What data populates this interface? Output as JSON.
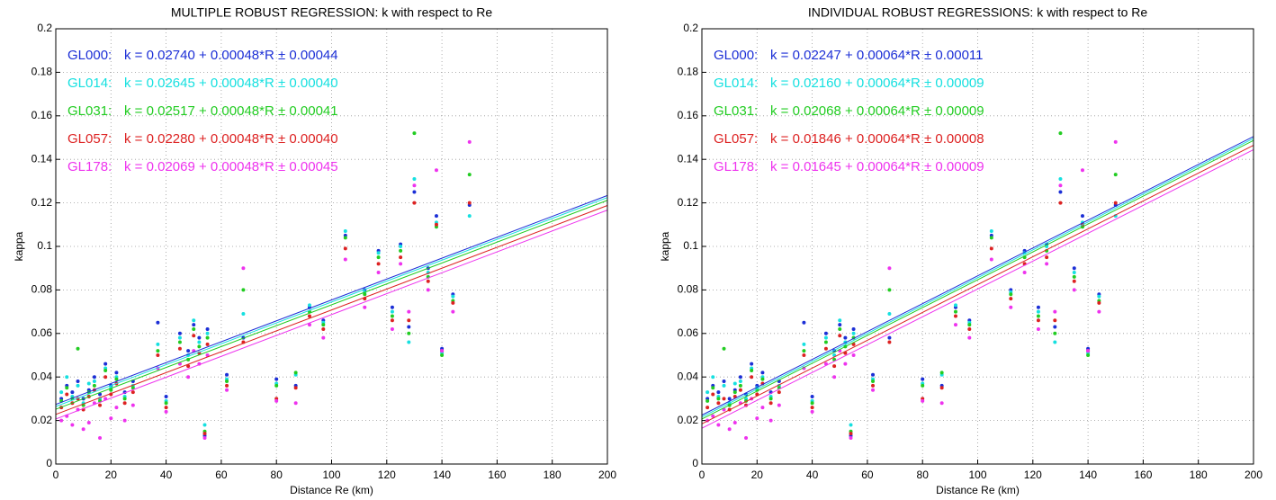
{
  "chart_data": [
    {
      "type": "scatter",
      "title": "MULTIPLE ROBUST REGRESSION: k with respect to Re",
      "xlabel": "Distance Re (km)",
      "ylabel": "kappa",
      "xlim": [
        0,
        200
      ],
      "ylim": [
        0,
        0.2
      ],
      "xticks": [
        0,
        20,
        40,
        60,
        80,
        100,
        120,
        140,
        160,
        180,
        200
      ],
      "yticks": [
        0,
        0.02,
        0.04,
        0.06,
        0.08,
        0.1,
        0.12,
        0.14,
        0.16,
        0.18,
        0.2
      ],
      "grid": true,
      "series": [
        {
          "name": "GL000:",
          "color": "#1c2fd6",
          "equation": "k = 0.02740 + 0.00048*R ± 0.00044",
          "intercept": 0.0274,
          "slope": 0.00048,
          "error": 0.00044,
          "x": [
            2,
            4,
            6,
            8,
            10,
            12,
            14,
            16,
            18,
            20,
            22,
            25,
            28,
            37,
            40,
            45,
            48,
            50,
            52,
            54,
            55,
            62,
            68,
            80,
            87,
            92,
            97,
            105,
            112,
            117,
            122,
            125,
            128,
            130,
            135,
            138,
            140,
            144,
            150
          ],
          "values": [
            0.03,
            0.036,
            0.033,
            0.038,
            0.03,
            0.034,
            0.04,
            0.032,
            0.046,
            0.036,
            0.042,
            0.033,
            0.038,
            0.065,
            0.031,
            0.06,
            0.052,
            0.064,
            0.058,
            0.013,
            0.062,
            0.041,
            0.058,
            0.039,
            0.036,
            0.072,
            0.066,
            0.105,
            0.08,
            0.098,
            0.072,
            0.101,
            0.063,
            0.125,
            0.09,
            0.114,
            0.053,
            0.078,
            0.119
          ]
        },
        {
          "name": "GL014:",
          "color": "#16e0e0",
          "equation": "k = 0.02645 + 0.00048*R ± 0.00040",
          "intercept": 0.02645,
          "slope": 0.00048,
          "error": 0.0004,
          "x": [
            2,
            4,
            6,
            8,
            10,
            12,
            14,
            16,
            18,
            20,
            22,
            25,
            28,
            37,
            40,
            45,
            48,
            50,
            52,
            54,
            55,
            62,
            68,
            80,
            87,
            92,
            97,
            105,
            112,
            117,
            122,
            125,
            128,
            130,
            135,
            138,
            140,
            144,
            150
          ],
          "values": [
            0.033,
            0.04,
            0.031,
            0.036,
            0.028,
            0.037,
            0.038,
            0.03,
            0.044,
            0.035,
            0.04,
            0.031,
            0.036,
            0.055,
            0.029,
            0.058,
            0.05,
            0.066,
            0.056,
            0.018,
            0.06,
            0.039,
            0.069,
            0.037,
            0.041,
            0.073,
            0.065,
            0.107,
            0.079,
            0.097,
            0.07,
            0.1,
            0.056,
            0.131,
            0.088,
            0.111,
            0.051,
            0.077,
            0.114
          ]
        },
        {
          "name": "GL031:",
          "color": "#22cc22",
          "equation": "k = 0.02517 + 0.00048*R ± 0.00041",
          "intercept": 0.02517,
          "slope": 0.00048,
          "error": 0.00041,
          "x": [
            2,
            4,
            6,
            8,
            10,
            12,
            14,
            16,
            18,
            20,
            22,
            25,
            28,
            37,
            40,
            45,
            48,
            50,
            52,
            54,
            55,
            62,
            68,
            80,
            87,
            92,
            97,
            105,
            112,
            117,
            122,
            125,
            128,
            130,
            135,
            138,
            140,
            144,
            150
          ],
          "values": [
            0.029,
            0.035,
            0.03,
            0.053,
            0.027,
            0.033,
            0.036,
            0.029,
            0.043,
            0.034,
            0.039,
            0.03,
            0.035,
            0.052,
            0.028,
            0.056,
            0.048,
            0.062,
            0.054,
            0.015,
            0.058,
            0.038,
            0.08,
            0.036,
            0.042,
            0.07,
            0.064,
            0.104,
            0.078,
            0.095,
            0.068,
            0.098,
            0.06,
            0.152,
            0.086,
            0.109,
            0.05,
            0.075,
            0.133
          ]
        },
        {
          "name": "GL057:",
          "color": "#dd2222",
          "equation": "k = 0.02280 + 0.00048*R ± 0.00040",
          "intercept": 0.0228,
          "slope": 0.00048,
          "error": 0.0004,
          "x": [
            2,
            4,
            6,
            8,
            10,
            12,
            14,
            16,
            18,
            20,
            22,
            25,
            28,
            37,
            40,
            45,
            48,
            50,
            52,
            54,
            55,
            62,
            68,
            80,
            87,
            92,
            97,
            105,
            112,
            117,
            122,
            125,
            128,
            130,
            135,
            138,
            140,
            144,
            150
          ],
          "values": [
            0.026,
            0.032,
            0.028,
            0.03,
            0.025,
            0.031,
            0.034,
            0.027,
            0.04,
            0.032,
            0.037,
            0.028,
            0.033,
            0.05,
            0.026,
            0.053,
            0.045,
            0.059,
            0.051,
            0.014,
            0.055,
            0.036,
            0.056,
            0.03,
            0.035,
            0.068,
            0.062,
            0.099,
            0.076,
            0.092,
            0.066,
            0.095,
            0.066,
            0.12,
            0.084,
            0.11,
            0.052,
            0.074,
            0.12
          ]
        },
        {
          "name": "GL178:",
          "color": "#ee33ee",
          "equation": "k = 0.02069 + 0.00048*R ± 0.00045",
          "intercept": 0.02069,
          "slope": 0.00048,
          "error": 0.00045,
          "x": [
            2,
            4,
            6,
            8,
            10,
            12,
            14,
            16,
            18,
            20,
            22,
            25,
            28,
            37,
            40,
            45,
            48,
            50,
            52,
            54,
            55,
            62,
            68,
            80,
            87,
            92,
            97,
            105,
            112,
            117,
            122,
            125,
            128,
            130,
            135,
            138,
            140,
            144,
            150
          ],
          "values": [
            0.02,
            0.022,
            0.018,
            0.025,
            0.016,
            0.019,
            0.028,
            0.012,
            0.03,
            0.021,
            0.026,
            0.02,
            0.027,
            0.044,
            0.024,
            0.046,
            0.04,
            0.052,
            0.046,
            0.012,
            0.05,
            0.034,
            0.09,
            0.029,
            0.028,
            0.064,
            0.058,
            0.094,
            0.072,
            0.088,
            0.062,
            0.092,
            0.07,
            0.128,
            0.08,
            0.135,
            0.052,
            0.07,
            0.148
          ]
        }
      ]
    },
    {
      "type": "scatter",
      "title": "INDIVIDUAL ROBUST REGRESSIONS: k with respect to Re",
      "xlabel": "Distance Re (km)",
      "ylabel": "kappa",
      "xlim": [
        0,
        200
      ],
      "ylim": [
        0,
        0.2
      ],
      "xticks": [
        0,
        20,
        40,
        60,
        80,
        100,
        120,
        140,
        160,
        180,
        200
      ],
      "yticks": [
        0,
        0.02,
        0.04,
        0.06,
        0.08,
        0.1,
        0.12,
        0.14,
        0.16,
        0.18,
        0.2
      ],
      "grid": true,
      "series": [
        {
          "name": "GL000:",
          "color": "#1c2fd6",
          "equation": "k = 0.02247 + 0.00064*R ± 0.00011",
          "intercept": 0.02247,
          "slope": 0.00064,
          "error": 0.00011,
          "x": [
            2,
            4,
            6,
            8,
            10,
            12,
            14,
            16,
            18,
            20,
            22,
            25,
            28,
            37,
            40,
            45,
            48,
            50,
            52,
            54,
            55,
            62,
            68,
            80,
            87,
            92,
            97,
            105,
            112,
            117,
            122,
            125,
            128,
            130,
            135,
            138,
            140,
            144,
            150
          ],
          "values": [
            0.03,
            0.036,
            0.033,
            0.038,
            0.03,
            0.034,
            0.04,
            0.032,
            0.046,
            0.036,
            0.042,
            0.033,
            0.038,
            0.065,
            0.031,
            0.06,
            0.052,
            0.064,
            0.058,
            0.013,
            0.062,
            0.041,
            0.058,
            0.039,
            0.036,
            0.072,
            0.066,
            0.105,
            0.08,
            0.098,
            0.072,
            0.101,
            0.063,
            0.125,
            0.09,
            0.114,
            0.053,
            0.078,
            0.119
          ]
        },
        {
          "name": "GL014:",
          "color": "#16e0e0",
          "equation": "k = 0.02160 + 0.00064*R ± 0.00009",
          "intercept": 0.0216,
          "slope": 0.00064,
          "error": 9e-05,
          "x": [
            2,
            4,
            6,
            8,
            10,
            12,
            14,
            16,
            18,
            20,
            22,
            25,
            28,
            37,
            40,
            45,
            48,
            50,
            52,
            54,
            55,
            62,
            68,
            80,
            87,
            92,
            97,
            105,
            112,
            117,
            122,
            125,
            128,
            130,
            135,
            138,
            140,
            144,
            150
          ],
          "values": [
            0.033,
            0.04,
            0.031,
            0.036,
            0.028,
            0.037,
            0.038,
            0.03,
            0.044,
            0.035,
            0.04,
            0.031,
            0.036,
            0.055,
            0.029,
            0.058,
            0.05,
            0.066,
            0.056,
            0.018,
            0.06,
            0.039,
            0.069,
            0.037,
            0.041,
            0.073,
            0.065,
            0.107,
            0.079,
            0.097,
            0.07,
            0.1,
            0.056,
            0.131,
            0.088,
            0.111,
            0.051,
            0.077,
            0.114
          ]
        },
        {
          "name": "GL031:",
          "color": "#22cc22",
          "equation": "k = 0.02068 + 0.00064*R ± 0.00009",
          "intercept": 0.02068,
          "slope": 0.00064,
          "error": 9e-05,
          "x": [
            2,
            4,
            6,
            8,
            10,
            12,
            14,
            16,
            18,
            20,
            22,
            25,
            28,
            37,
            40,
            45,
            48,
            50,
            52,
            54,
            55,
            62,
            68,
            80,
            87,
            92,
            97,
            105,
            112,
            117,
            122,
            125,
            128,
            130,
            135,
            138,
            140,
            144,
            150
          ],
          "values": [
            0.029,
            0.035,
            0.03,
            0.053,
            0.027,
            0.033,
            0.036,
            0.029,
            0.043,
            0.034,
            0.039,
            0.03,
            0.035,
            0.052,
            0.028,
            0.056,
            0.048,
            0.062,
            0.054,
            0.015,
            0.058,
            0.038,
            0.08,
            0.036,
            0.042,
            0.07,
            0.064,
            0.104,
            0.078,
            0.095,
            0.068,
            0.098,
            0.06,
            0.152,
            0.086,
            0.109,
            0.05,
            0.075,
            0.133
          ]
        },
        {
          "name": "GL057:",
          "color": "#dd2222",
          "equation": "k = 0.01846 + 0.00064*R ± 0.00008",
          "intercept": 0.01846,
          "slope": 0.00064,
          "error": 8e-05,
          "x": [
            2,
            4,
            6,
            8,
            10,
            12,
            14,
            16,
            18,
            20,
            22,
            25,
            28,
            37,
            40,
            45,
            48,
            50,
            52,
            54,
            55,
            62,
            68,
            80,
            87,
            92,
            97,
            105,
            112,
            117,
            122,
            125,
            128,
            130,
            135,
            138,
            140,
            144,
            150
          ],
          "values": [
            0.026,
            0.032,
            0.028,
            0.03,
            0.025,
            0.031,
            0.034,
            0.027,
            0.04,
            0.032,
            0.037,
            0.028,
            0.033,
            0.05,
            0.026,
            0.053,
            0.045,
            0.059,
            0.051,
            0.014,
            0.055,
            0.036,
            0.056,
            0.03,
            0.035,
            0.068,
            0.062,
            0.099,
            0.076,
            0.092,
            0.066,
            0.095,
            0.066,
            0.12,
            0.084,
            0.11,
            0.052,
            0.074,
            0.12
          ]
        },
        {
          "name": "GL178:",
          "color": "#ee33ee",
          "equation": "k = 0.01645 + 0.00064*R ± 0.00009",
          "intercept": 0.01645,
          "slope": 0.00064,
          "error": 9e-05,
          "x": [
            2,
            4,
            6,
            8,
            10,
            12,
            14,
            16,
            18,
            20,
            22,
            25,
            28,
            37,
            40,
            45,
            48,
            50,
            52,
            54,
            55,
            62,
            68,
            80,
            87,
            92,
            97,
            105,
            112,
            117,
            122,
            125,
            128,
            130,
            135,
            138,
            140,
            144,
            150
          ],
          "values": [
            0.02,
            0.022,
            0.018,
            0.025,
            0.016,
            0.019,
            0.028,
            0.012,
            0.03,
            0.021,
            0.026,
            0.02,
            0.027,
            0.044,
            0.024,
            0.046,
            0.04,
            0.052,
            0.046,
            0.012,
            0.05,
            0.034,
            0.09,
            0.029,
            0.028,
            0.064,
            0.058,
            0.094,
            0.072,
            0.088,
            0.062,
            0.092,
            0.07,
            0.128,
            0.08,
            0.135,
            0.052,
            0.07,
            0.148
          ]
        }
      ]
    }
  ]
}
